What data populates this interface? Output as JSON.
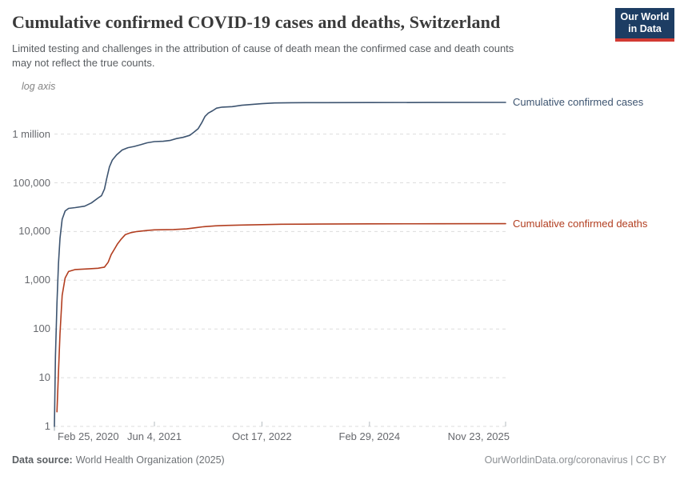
{
  "header": {
    "title": "Cumulative confirmed COVID-19 cases and deaths, Switzerland",
    "subtitle_lines": [
      "Limited testing and challenges in the attribution of cause of death mean the confirmed case and death counts",
      "may not reflect the true counts."
    ],
    "logo": {
      "line1": "Our World",
      "line2": "in Data"
    }
  },
  "chart_data": {
    "type": "line",
    "title": "Cumulative confirmed COVID-19 cases and deaths, Switzerland",
    "axis_note": "log axis",
    "y_scale": "log",
    "grid": true,
    "legend_position": "right-end-labels",
    "xlabel": "",
    "ylabel": "",
    "x_range": [
      "2020-02-25",
      "2025-11-23"
    ],
    "ylim": [
      1,
      6000000
    ],
    "y_ticks": [
      {
        "value": 1,
        "label": "1"
      },
      {
        "value": 10,
        "label": "10"
      },
      {
        "value": 100,
        "label": "100"
      },
      {
        "value": 1000,
        "label": "1,000"
      },
      {
        "value": 10000,
        "label": "10,000"
      },
      {
        "value": 100000,
        "label": "100,000"
      },
      {
        "value": 1000000,
        "label": "1 million"
      }
    ],
    "x_ticks": [
      {
        "date": "2020-02-25",
        "label": "Feb 25, 2020",
        "align": "left"
      },
      {
        "date": "2021-06-04",
        "label": "Jun 4, 2021",
        "align": "center"
      },
      {
        "date": "2022-10-17",
        "label": "Oct 17, 2022",
        "align": "center"
      },
      {
        "date": "2024-02-29",
        "label": "Feb 29, 2024",
        "align": "center"
      },
      {
        "date": "2025-11-23",
        "label": "Nov 23, 2025",
        "align": "right"
      }
    ],
    "series": [
      {
        "name": "Cumulative confirmed cases",
        "color": "#3d5470",
        "points": [
          [
            "2020-02-25",
            1
          ],
          [
            "2020-03-01",
            27
          ],
          [
            "2020-03-08",
            337
          ],
          [
            "2020-03-15",
            2200
          ],
          [
            "2020-03-22",
            7245
          ],
          [
            "2020-04-01",
            17800
          ],
          [
            "2020-04-15",
            26300
          ],
          [
            "2020-05-01",
            29800
          ],
          [
            "2020-06-01",
            30950
          ],
          [
            "2020-07-15",
            33200
          ],
          [
            "2020-08-15",
            38500
          ],
          [
            "2020-09-15",
            48800
          ],
          [
            "2020-10-01",
            54400
          ],
          [
            "2020-10-15",
            74400
          ],
          [
            "2020-10-25",
            121000
          ],
          [
            "2020-11-07",
            211900
          ],
          [
            "2020-11-20",
            290600
          ],
          [
            "2020-12-10",
            373800
          ],
          [
            "2021-01-05",
            470800
          ],
          [
            "2021-02-01",
            524900
          ],
          [
            "2021-03-01",
            555600
          ],
          [
            "2021-04-01",
            603900
          ],
          [
            "2021-05-01",
            662500
          ],
          [
            "2021-06-04",
            702100
          ],
          [
            "2021-07-15",
            711800
          ],
          [
            "2021-08-15",
            739800
          ],
          [
            "2021-09-15",
            810700
          ],
          [
            "2021-10-15",
            856200
          ],
          [
            "2021-11-15",
            940300
          ],
          [
            "2021-12-05",
            1100000
          ],
          [
            "2021-12-25",
            1300000
          ],
          [
            "2022-01-10",
            1700000
          ],
          [
            "2022-01-25",
            2300000
          ],
          [
            "2022-02-10",
            2700000
          ],
          [
            "2022-03-01",
            3000000
          ],
          [
            "2022-03-20",
            3400000
          ],
          [
            "2022-04-15",
            3580000
          ],
          [
            "2022-06-01",
            3660000
          ],
          [
            "2022-07-15",
            3900000
          ],
          [
            "2022-10-17",
            4210000
          ],
          [
            "2022-12-15",
            4350000
          ],
          [
            "2023-03-01",
            4400000
          ],
          [
            "2023-08-01",
            4420000
          ],
          [
            "2024-02-29",
            4440000
          ],
          [
            "2024-12-01",
            4455000
          ],
          [
            "2025-11-23",
            4465000
          ]
        ]
      },
      {
        "name": "Cumulative confirmed deaths",
        "color": "#b23e20",
        "points": [
          [
            "2020-03-08",
            2
          ],
          [
            "2020-03-15",
            13
          ],
          [
            "2020-03-22",
            80
          ],
          [
            "2020-04-01",
            488
          ],
          [
            "2020-04-15",
            1112
          ],
          [
            "2020-05-01",
            1510
          ],
          [
            "2020-06-01",
            1660
          ],
          [
            "2020-08-01",
            1710
          ],
          [
            "2020-09-15",
            1760
          ],
          [
            "2020-10-15",
            1860
          ],
          [
            "2020-11-01",
            2340
          ],
          [
            "2020-11-15",
            3360
          ],
          [
            "2020-12-01",
            4420
          ],
          [
            "2020-12-15",
            5600
          ],
          [
            "2021-01-01",
            7000
          ],
          [
            "2021-01-20",
            8650
          ],
          [
            "2021-02-15",
            9500
          ],
          [
            "2021-03-15",
            10000
          ],
          [
            "2021-05-01",
            10500
          ],
          [
            "2021-06-04",
            10840
          ],
          [
            "2021-09-01",
            11000
          ],
          [
            "2021-11-01",
            11350
          ],
          [
            "2021-12-15",
            12000
          ],
          [
            "2022-01-15",
            12500
          ],
          [
            "2022-03-15",
            13100
          ],
          [
            "2022-05-01",
            13350
          ],
          [
            "2022-07-15",
            13600
          ],
          [
            "2022-10-17",
            13850
          ],
          [
            "2023-01-15",
            14100
          ],
          [
            "2023-07-01",
            14200
          ],
          [
            "2024-02-29",
            14350
          ],
          [
            "2025-01-01",
            14450
          ],
          [
            "2025-11-23",
            14500
          ]
        ]
      }
    ]
  },
  "footer": {
    "source_label": "Data source:",
    "source_value": "World Health Organization (2025)",
    "credit": "OurWorldinData.org/coronavirus | CC BY"
  }
}
